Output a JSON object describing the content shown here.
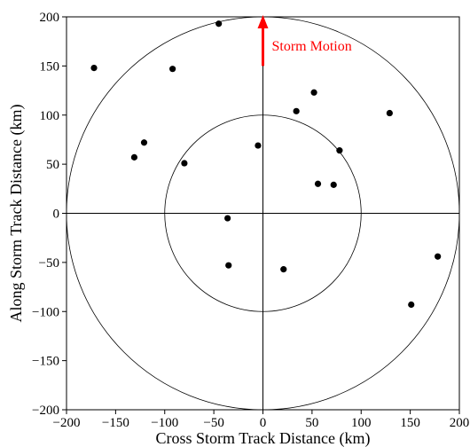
{
  "chart_data": {
    "type": "scatter",
    "title": "",
    "xlabel": "Cross Storm Track Distance (km)",
    "ylabel": "Along Storm Track Distance (km)",
    "xlim": [
      -200,
      200
    ],
    "ylim": [
      -200,
      200
    ],
    "xticks": [
      -200,
      -150,
      -100,
      -50,
      0,
      50,
      100,
      150,
      200
    ],
    "yticks": [
      -200,
      -150,
      -100,
      -50,
      0,
      50,
      100,
      150,
      200
    ],
    "grid": false,
    "reference_circles_radius": [
      100,
      200
    ],
    "reference_axes": true,
    "annotation": {
      "text": "Storm Motion",
      "color": "#ff0000",
      "arrow_from": [
        0,
        150
      ],
      "arrow_to": [
        0,
        200
      ]
    },
    "points": [
      {
        "x": -172,
        "y": 148
      },
      {
        "x": -45,
        "y": 193
      },
      {
        "x": -92,
        "y": 147
      },
      {
        "x": -121,
        "y": 72
      },
      {
        "x": -131,
        "y": 57
      },
      {
        "x": -80,
        "y": 51
      },
      {
        "x": -5,
        "y": 69
      },
      {
        "x": 34,
        "y": 104
      },
      {
        "x": 52,
        "y": 123
      },
      {
        "x": 78,
        "y": 64
      },
      {
        "x": 56,
        "y": 30
      },
      {
        "x": 72,
        "y": 29
      },
      {
        "x": 129,
        "y": 102
      },
      {
        "x": -36,
        "y": -5
      },
      {
        "x": -35,
        "y": -53
      },
      {
        "x": 21,
        "y": -57
      },
      {
        "x": 178,
        "y": -44
      },
      {
        "x": 151,
        "y": -93
      }
    ],
    "marker_color": "#000000"
  }
}
